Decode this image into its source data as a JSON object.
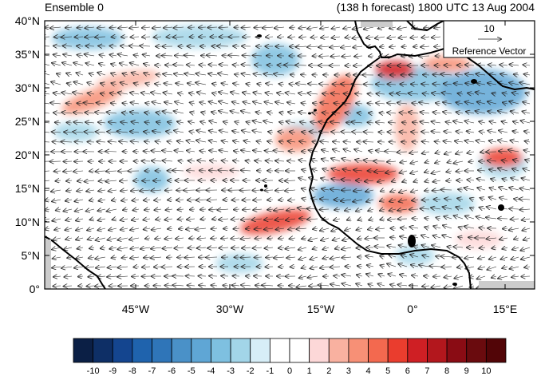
{
  "header": {
    "left_title": "Ensemble 0",
    "right_title": "(138 h forecast) 1800 UTC 13 Aug 2004"
  },
  "map": {
    "lat_labels": [
      "40°N",
      "35°N",
      "30°N",
      "25°N",
      "20°N",
      "15°N",
      "10°N",
      "5°N",
      "0°"
    ],
    "lon_labels": [
      "45°W",
      "30°W",
      "15°W",
      "0°",
      "15°E"
    ],
    "reference_vector": {
      "value": "10",
      "label": "Reference Vector"
    },
    "anomaly_colors": {
      "positive": "#e8413a",
      "negative": "#5aa7d6",
      "land_line": "#000000",
      "vector": "#222222"
    }
  },
  "colorbar": {
    "labels": [
      "-10",
      "-9",
      "-8",
      "-7",
      "-6",
      "-5",
      "-4",
      "-3",
      "-2",
      "-1",
      "0",
      "1",
      "2",
      "3",
      "4",
      "5",
      "6",
      "7",
      "8",
      "9",
      "10"
    ],
    "colors": [
      "#0b1f45",
      "#0e2f66",
      "#14458f",
      "#1f63ad",
      "#2f75b8",
      "#4a91c8",
      "#5fa6d5",
      "#7ec0e0",
      "#a2d5e8",
      "#d7eef7",
      "#ffffff",
      "#ffffff",
      "#fdd8d8",
      "#f9b1a0",
      "#f79076",
      "#f3694f",
      "#ea3d2e",
      "#cf1f24",
      "#b3171d",
      "#8a0c14",
      "#6a0b0e",
      "#520507"
    ]
  }
}
